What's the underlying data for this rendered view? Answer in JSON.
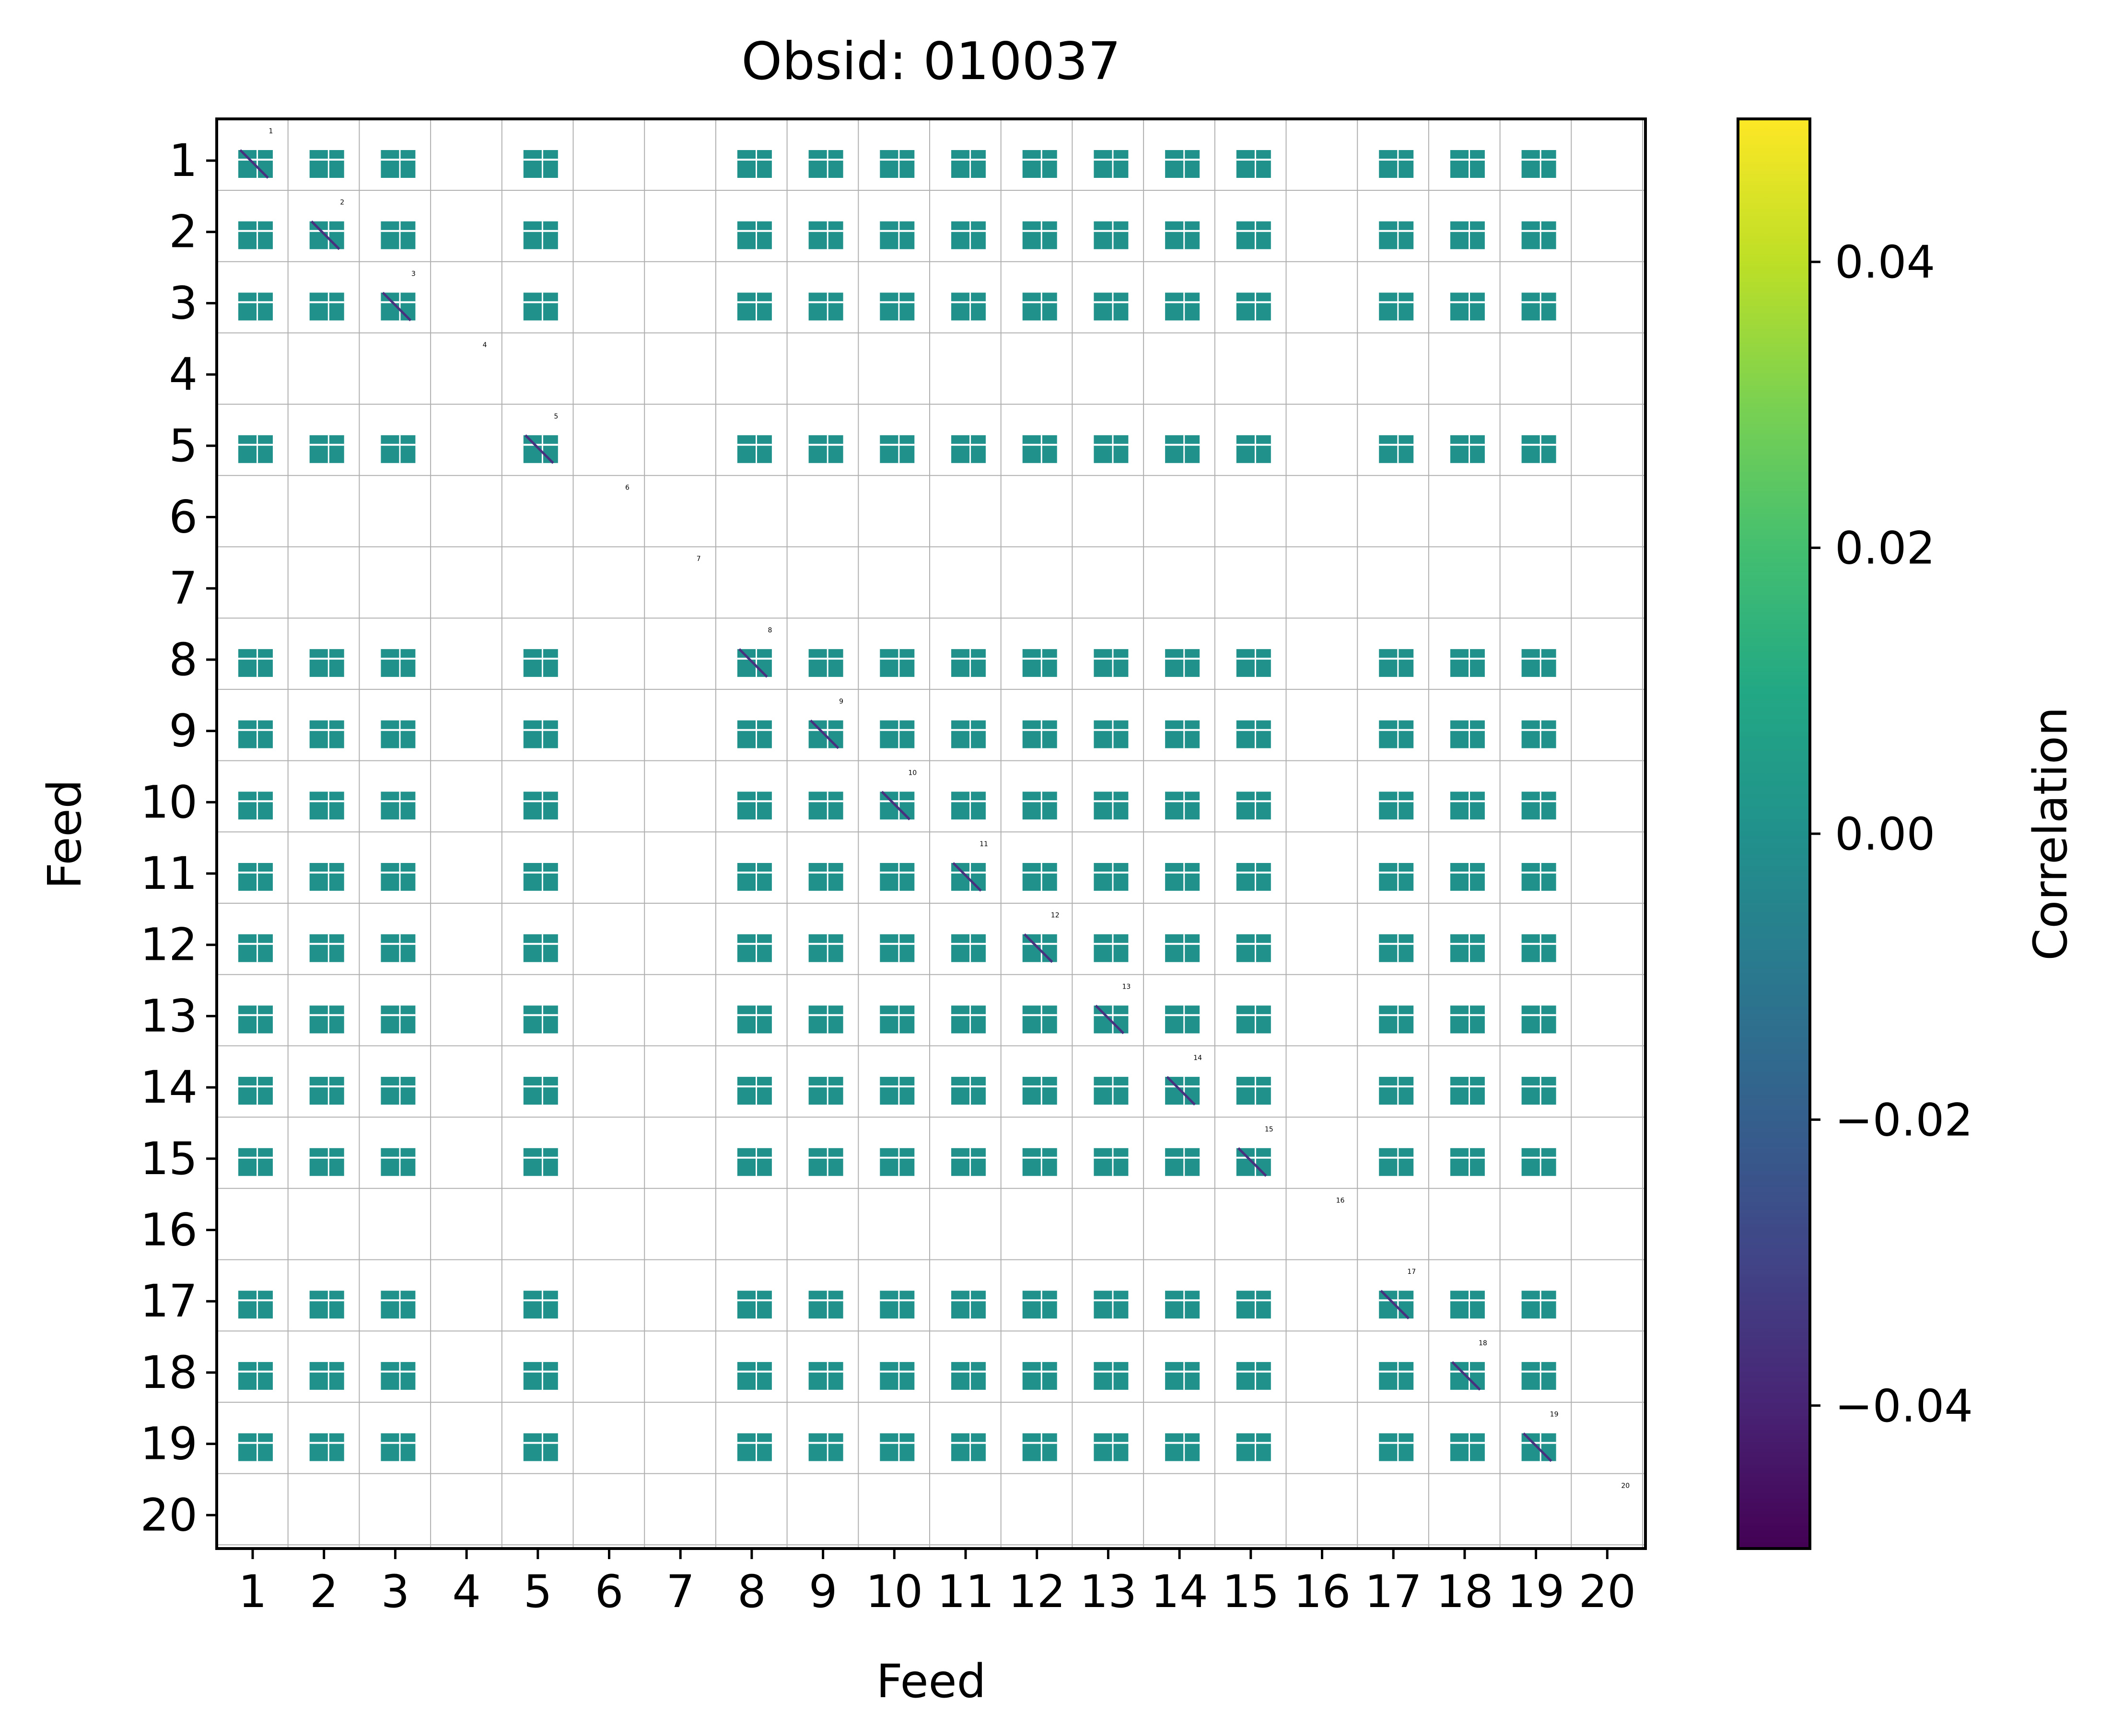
{
  "chart_data": {
    "type": "heatmap",
    "title": "Obsid: 010037",
    "xlabel": "Feed",
    "ylabel": "Feed",
    "x_ticks": [
      "1",
      "2",
      "3",
      "4",
      "5",
      "6",
      "7",
      "8",
      "9",
      "10",
      "11",
      "12",
      "13",
      "14",
      "15",
      "16",
      "17",
      "18",
      "19",
      "20"
    ],
    "y_ticks": [
      "1",
      "2",
      "3",
      "4",
      "5",
      "6",
      "7",
      "8",
      "9",
      "10",
      "11",
      "12",
      "13",
      "14",
      "15",
      "16",
      "17",
      "18",
      "19",
      "20"
    ],
    "diagonal_labels": [
      "1",
      "2",
      "3",
      "4",
      "5",
      "6",
      "7",
      "8",
      "9",
      "10",
      "11",
      "12",
      "13",
      "14",
      "15",
      "16",
      "17",
      "18",
      "19",
      "20"
    ],
    "active_feeds": [
      1,
      2,
      3,
      5,
      8,
      9,
      10,
      11,
      12,
      13,
      14,
      15,
      17,
      18,
      19
    ],
    "inactive_feeds": [
      4,
      6,
      7,
      16,
      20
    ],
    "block_value": 0.0,
    "diagonal_value": -0.05,
    "colorbar": {
      "label": "Correlation",
      "range": [
        -0.05,
        0.05
      ],
      "ticks": [
        -0.04,
        -0.02,
        0.0,
        0.02,
        0.04
      ],
      "tick_labels": [
        "−0.04",
        "−0.02",
        "0.00",
        "0.02",
        "0.04"
      ],
      "colormap": "viridis"
    },
    "colors": {
      "block": "#21918c",
      "diagonal": "#46327e",
      "grid": "#b0b0b0"
    }
  }
}
